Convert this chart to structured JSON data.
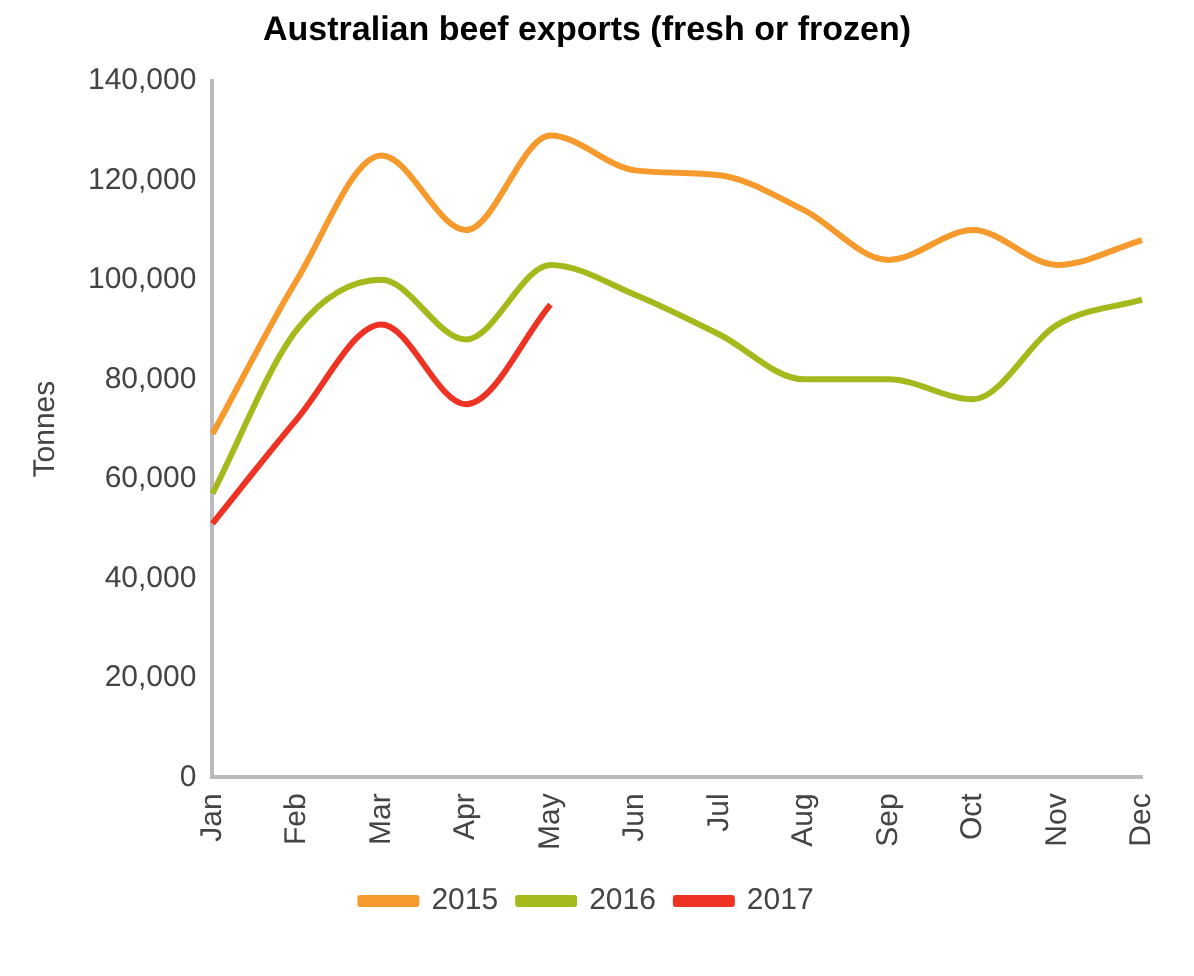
{
  "chart_data": {
    "type": "line",
    "title": "Australian beef exports (fresh or frozen)",
    "ylabel": "Tonnes",
    "categories": [
      "Jan",
      "Feb",
      "Mar",
      "Apr",
      "May",
      "Jun",
      "Jul",
      "Aug",
      "Sep",
      "Oct",
      "Nov",
      "Dec"
    ],
    "series": [
      {
        "name": "2015",
        "color": "#f79a2e",
        "values": [
          69000,
          100000,
          125000,
          110000,
          129000,
          122000,
          121000,
          114000,
          104000,
          110000,
          103000,
          108000
        ]
      },
      {
        "name": "2016",
        "color": "#a5b91c",
        "values": [
          57000,
          90000,
          100000,
          88000,
          103000,
          97000,
          89000,
          80000,
          80000,
          76000,
          91000,
          96000
        ]
      },
      {
        "name": "2017",
        "color": "#ee3224",
        "values": [
          51000,
          72000,
          91000,
          75000,
          95000,
          null,
          null,
          null,
          null,
          null,
          null,
          null
        ]
      }
    ],
    "ylim": [
      0,
      140000
    ],
    "yticks": [
      {
        "value": 0,
        "label": "0"
      },
      {
        "value": 20000,
        "label": "20,000"
      },
      {
        "value": 40000,
        "label": "40,000"
      },
      {
        "value": 60000,
        "label": "60,000"
      },
      {
        "value": 80000,
        "label": "80,000"
      },
      {
        "value": 100000,
        "label": "100,000"
      },
      {
        "value": 120000,
        "label": "120,000"
      },
      {
        "value": 140000,
        "label": "140,000"
      }
    ],
    "grid": false,
    "legend": "bottom",
    "marker": "none",
    "line_style": "solid"
  }
}
